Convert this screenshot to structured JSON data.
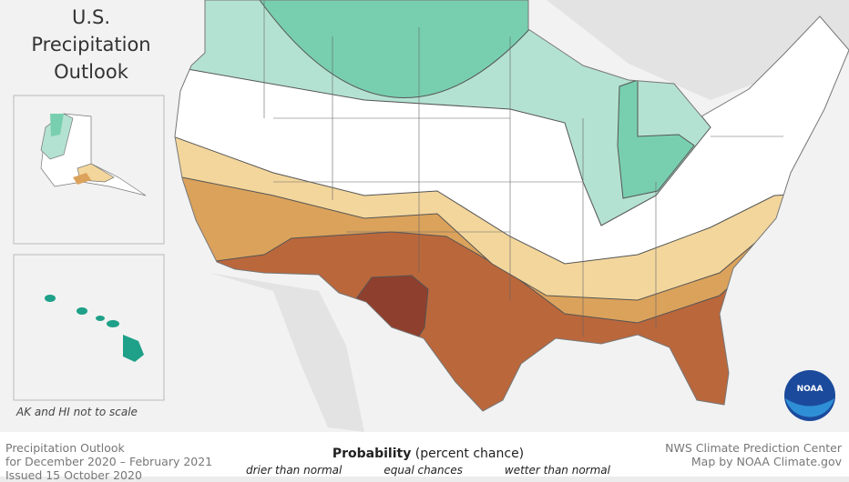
{
  "title": [
    "U.S.",
    "Precipitation",
    "Outlook"
  ],
  "inset_note": "AK and HI not to scale",
  "footer": {
    "left": [
      "Precipitation Outlook",
      "for December 2020 – February 2021",
      "Issued 15 October 2020"
    ],
    "right": [
      "NWS Climate Prediction Center",
      "Map by NOAA Climate.gov"
    ]
  },
  "legend": {
    "title_bold": "Probability",
    "title_rest": " (percent chance)",
    "labels": [
      "drier than normal",
      "equal chances",
      "wetter than normal"
    ]
  },
  "logo_text": "NOAA",
  "colors": {
    "wetter_strong": "#78cfb0",
    "wetter": "#b4e2d2",
    "equal": "#ffffff",
    "drier_light": "#f3d69c",
    "drier": "#dba25b",
    "drier_strong": "#ba673c",
    "drier_very_strong": "#8f3f2d",
    "land": "#e3e3e3",
    "water": "#f3f3f3",
    "hawaii": "#1fa088"
  }
}
